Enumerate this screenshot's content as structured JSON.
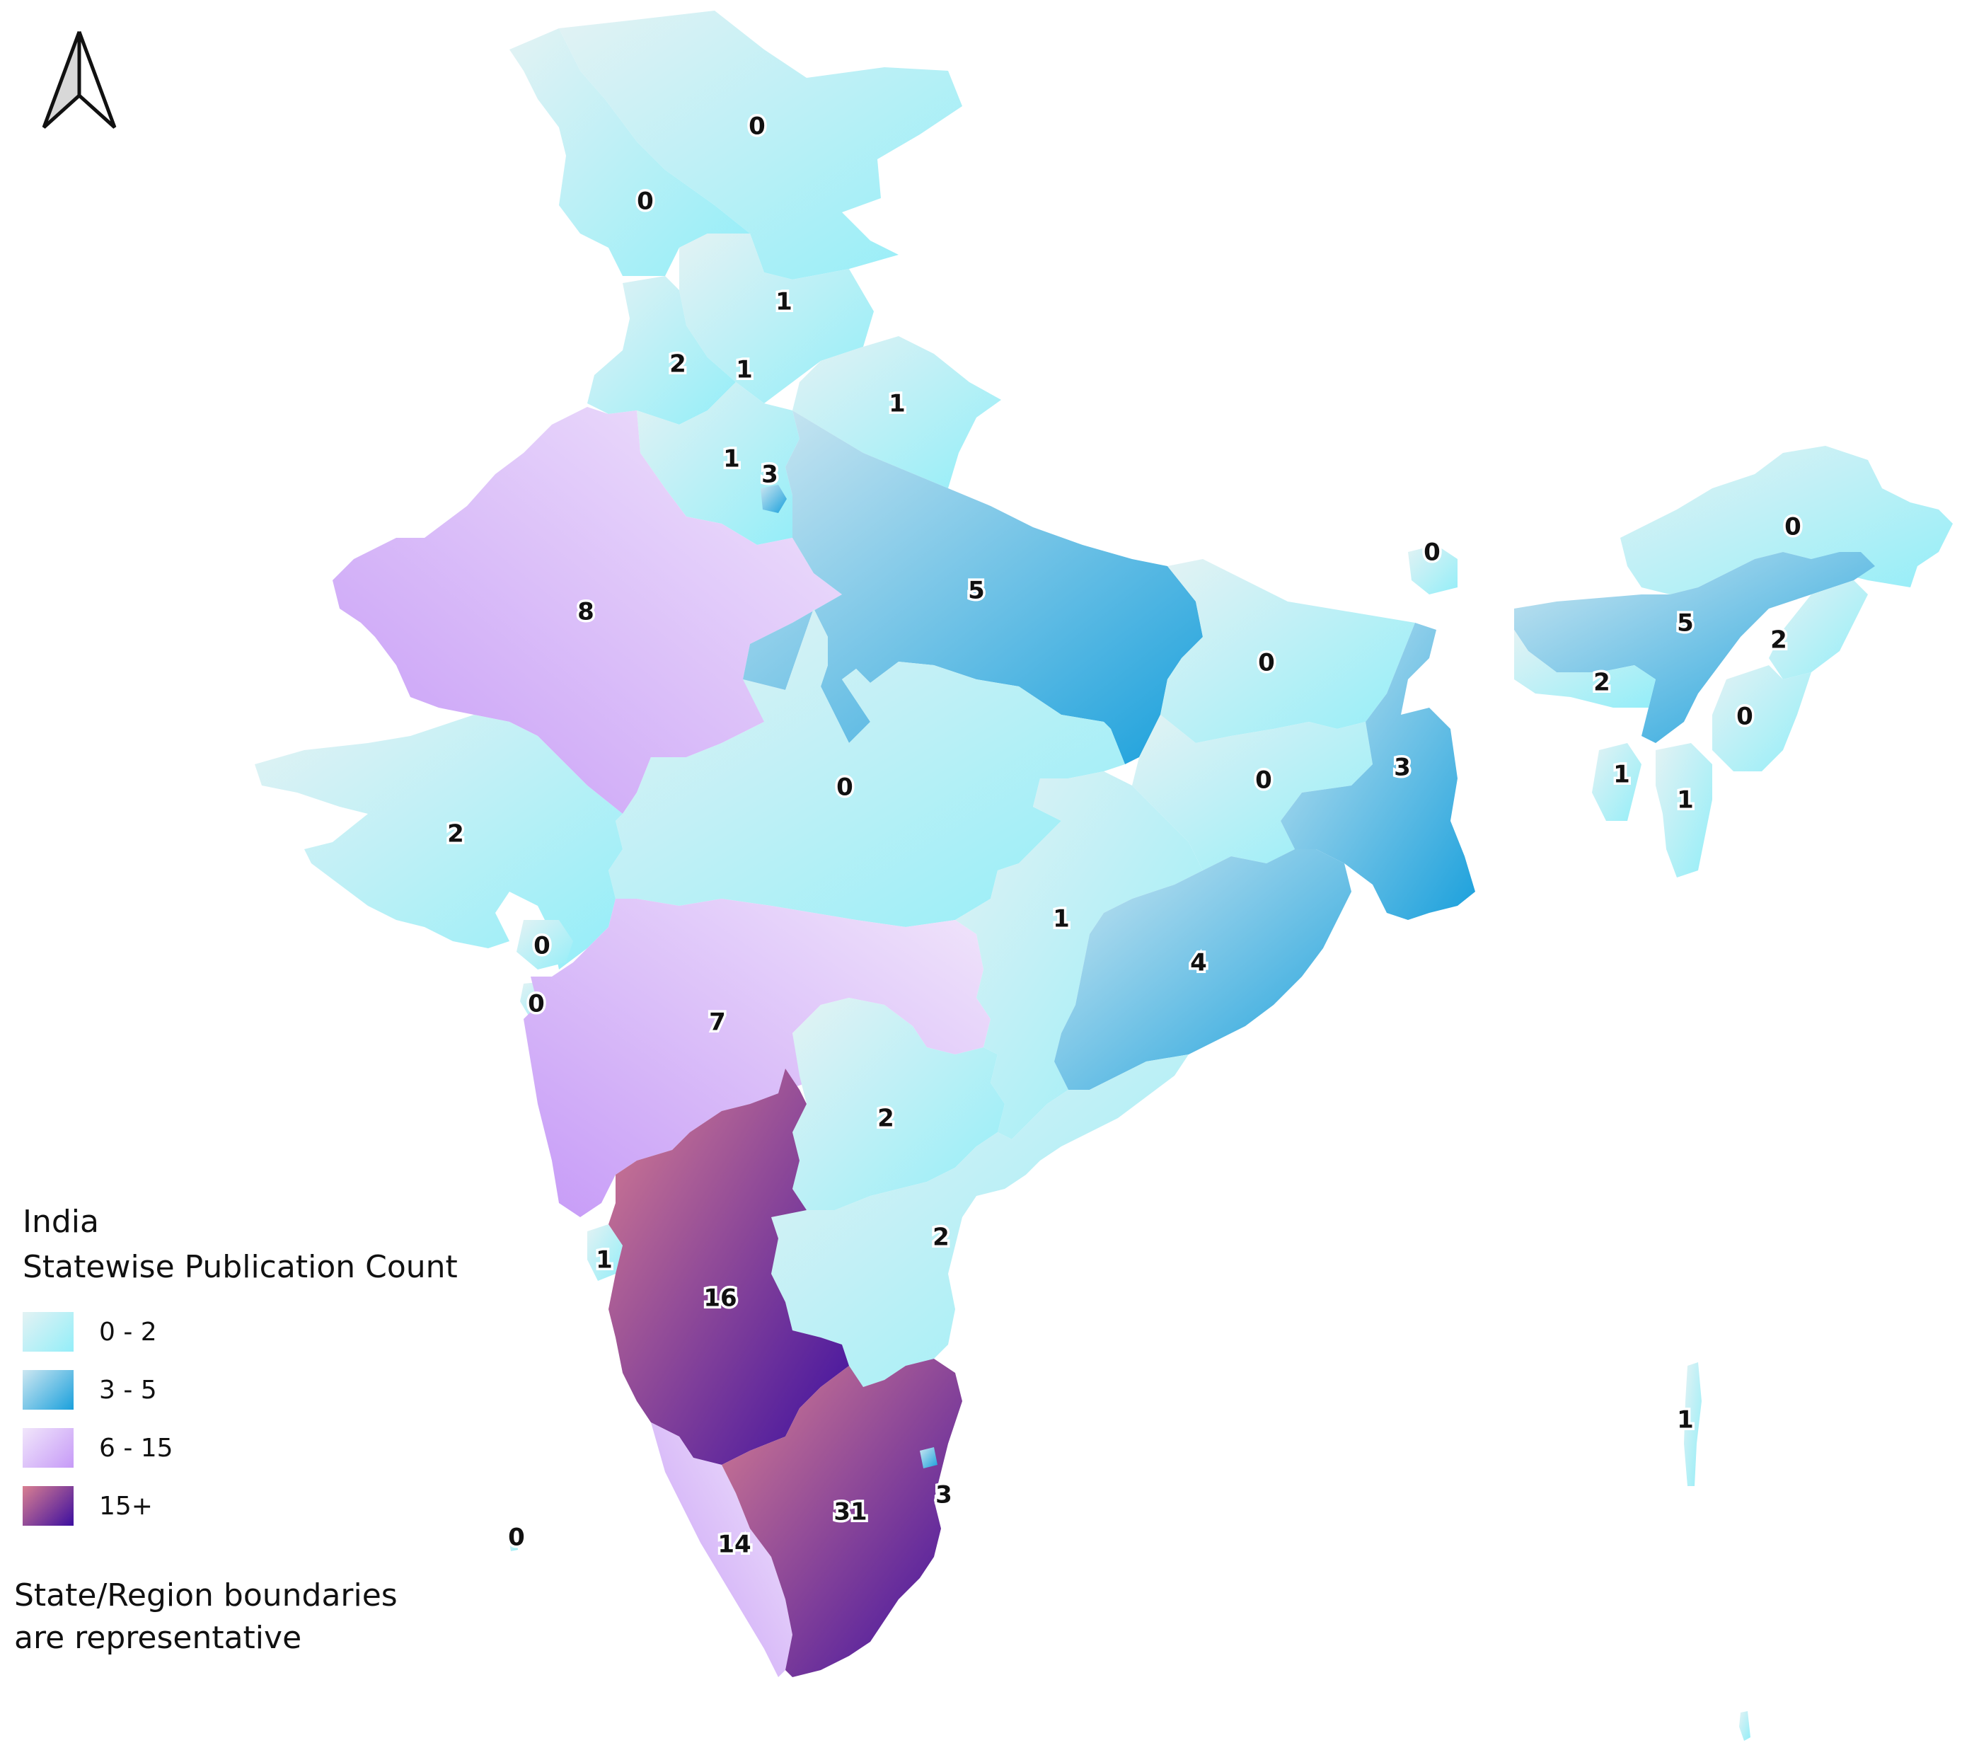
{
  "legend": {
    "title_line1": "India",
    "title_line2": "Statewise Publication Count",
    "classes": [
      {
        "label": "0 - 2",
        "color_light": "#e3f2f4",
        "color_dark": "#93eef8"
      },
      {
        "label": "3 - 5",
        "color_light": "#cde7f1",
        "color_dark": "#1aa0dc"
      },
      {
        "label": "6 - 15",
        "color_light": "#f1e6fb",
        "color_dark": "#c69af7"
      },
      {
        "label": "15+",
        "color_light": "#d97f91",
        "color_dark": "#3c0ea0"
      }
    ]
  },
  "note": "State/Region boundaries are representative",
  "north_arrow": "north-arrow-icon",
  "regions": [
    {
      "id": "ladakh",
      "count": "0",
      "class": 0
    },
    {
      "id": "jammu-kashmir",
      "count": "0",
      "class": 0
    },
    {
      "id": "himachal-pradesh",
      "count": "1",
      "class": 0
    },
    {
      "id": "punjab",
      "count": "2",
      "class": 0
    },
    {
      "id": "chandigarh",
      "count": "1",
      "class": 0
    },
    {
      "id": "uttarakhand",
      "count": "1",
      "class": 0
    },
    {
      "id": "haryana",
      "count": "1",
      "class": 0
    },
    {
      "id": "delhi",
      "count": "3",
      "class": 1
    },
    {
      "id": "rajasthan",
      "count": "8",
      "class": 2
    },
    {
      "id": "uttar-pradesh",
      "count": "5",
      "class": 1
    },
    {
      "id": "bihar",
      "count": "0",
      "class": 0
    },
    {
      "id": "sikkim",
      "count": "0",
      "class": 0
    },
    {
      "id": "arunachal-pradesh",
      "count": "0",
      "class": 0
    },
    {
      "id": "assam",
      "count": "5",
      "class": 1
    },
    {
      "id": "nagaland",
      "count": "2",
      "class": 0
    },
    {
      "id": "meghalaya",
      "count": "2",
      "class": 0
    },
    {
      "id": "manipur",
      "count": "0",
      "class": 0
    },
    {
      "id": "tripura",
      "count": "1",
      "class": 0
    },
    {
      "id": "mizoram",
      "count": "1",
      "class": 0
    },
    {
      "id": "jharkhand",
      "count": "0",
      "class": 0
    },
    {
      "id": "west-bengal",
      "count": "3",
      "class": 1
    },
    {
      "id": "madhya-pradesh",
      "count": "0",
      "class": 0
    },
    {
      "id": "gujarat",
      "count": "2",
      "class": 0
    },
    {
      "id": "daman-diu",
      "count": "0",
      "class": 0
    },
    {
      "id": "dadra-nagar-haveli",
      "count": "0",
      "class": 0
    },
    {
      "id": "chhattisgarh",
      "count": "1",
      "class": 0
    },
    {
      "id": "odisha",
      "count": "4",
      "class": 1
    },
    {
      "id": "maharashtra",
      "count": "7",
      "class": 2
    },
    {
      "id": "telangana",
      "count": "2",
      "class": 0
    },
    {
      "id": "andhra-pradesh",
      "count": "2",
      "class": 0
    },
    {
      "id": "goa",
      "count": "1",
      "class": 0
    },
    {
      "id": "karnataka",
      "count": "16",
      "class": 3
    },
    {
      "id": "kerala",
      "count": "14",
      "class": 2
    },
    {
      "id": "tamil-nadu",
      "count": "31",
      "class": 3
    },
    {
      "id": "puducherry",
      "count": "3",
      "class": 1
    },
    {
      "id": "lakshadweep",
      "count": "0",
      "class": 0
    },
    {
      "id": "andaman-nicobar",
      "count": "1",
      "class": 0
    }
  ]
}
